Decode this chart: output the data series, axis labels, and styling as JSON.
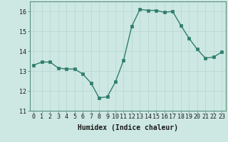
{
  "x": [
    0,
    1,
    2,
    3,
    4,
    5,
    6,
    7,
    8,
    9,
    10,
    11,
    12,
    13,
    14,
    15,
    16,
    17,
    18,
    19,
    20,
    21,
    22,
    23
  ],
  "y": [
    13.3,
    13.45,
    13.45,
    13.15,
    13.1,
    13.1,
    12.85,
    12.4,
    11.65,
    11.7,
    12.45,
    13.55,
    15.25,
    16.1,
    16.05,
    16.05,
    15.95,
    16.0,
    15.3,
    14.65,
    14.1,
    13.65,
    13.7,
    13.95
  ],
  "line_color": "#2e7d6e",
  "marker_color": "#2e7d6e",
  "bg_color": "#cde8e2",
  "grid_color": "#b8d4ce",
  "xlabel": "Humidex (Indice chaleur)",
  "xlim": [
    -0.5,
    23.5
  ],
  "ylim": [
    11.0,
    16.5
  ],
  "yticks": [
    11,
    12,
    13,
    14,
    15,
    16
  ],
  "xticks": [
    0,
    1,
    2,
    3,
    4,
    5,
    6,
    7,
    8,
    9,
    10,
    11,
    12,
    13,
    14,
    15,
    16,
    17,
    18,
    19,
    20,
    21,
    22,
    23
  ],
  "xtick_labels": [
    "0",
    "1",
    "2",
    "3",
    "4",
    "5",
    "6",
    "7",
    "8",
    "9",
    "10",
    "11",
    "12",
    "13",
    "14",
    "15",
    "16",
    "17",
    "18",
    "19",
    "20",
    "21",
    "22",
    "23"
  ],
  "linewidth": 1.0,
  "markersize": 2.5,
  "xlabel_fontsize": 7,
  "tick_fontsize": 6
}
